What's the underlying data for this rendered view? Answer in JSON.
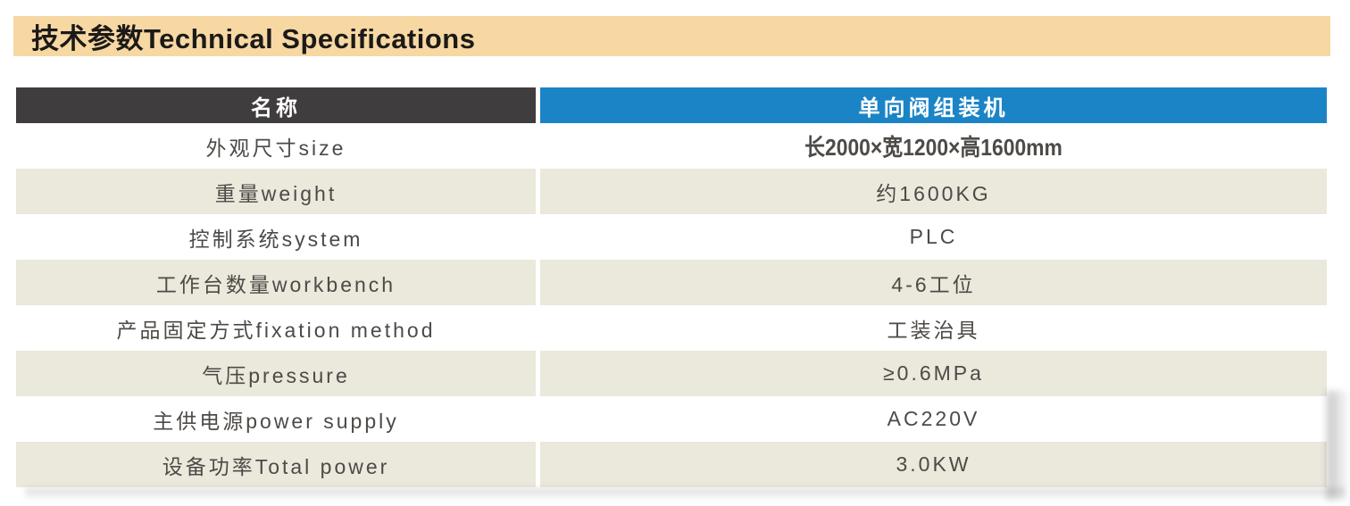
{
  "banner": {
    "title": "技术参数Technical Specifications",
    "bg": "#f7d8a3",
    "text_color": "#1c1a18"
  },
  "table": {
    "header": {
      "name_label": "名称",
      "machine_label": "单向阀组装机",
      "name_bg": "#403d3e",
      "machine_bg": "#1b84c6",
      "text_color": "#ffffff"
    },
    "rows": [
      {
        "label": "外观尺寸size",
        "value": "长2000×宽1200×高1600mm"
      },
      {
        "label": "重量weight",
        "value": "约1600KG"
      },
      {
        "label": "控制系统system",
        "value": "PLC"
      },
      {
        "label": "工作台数量workbench",
        "value": "4-6工位"
      },
      {
        "label": "产品固定方式fixation method",
        "value": "工装治具"
      },
      {
        "label": "气压pressure",
        "value": "≥0.6MPa"
      },
      {
        "label": "主供电源power supply",
        "value": "AC220V"
      },
      {
        "label": "设备功率Total power",
        "value": "3.0KW"
      }
    ],
    "row_alt_bg": "#ebe8dc",
    "row_bg": "#ffffff",
    "row_text_color": "#4d4a47"
  }
}
